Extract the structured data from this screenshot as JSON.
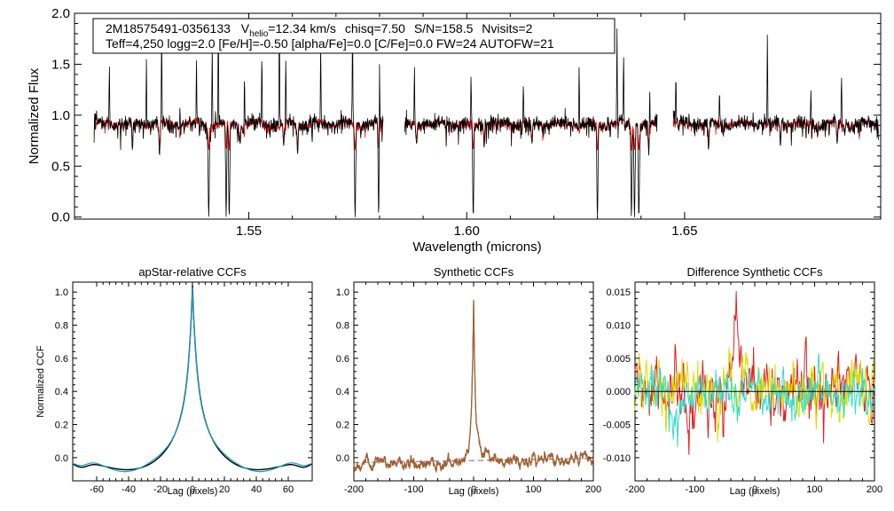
{
  "chart_data": [
    {
      "type": "line",
      "id": "spectrum",
      "title": "",
      "info_line1": {
        "star": "2M18575491-0356133",
        "vhelio_label": "V",
        "vhelio_sub": "helio",
        "vhelio_value": "=12.34 km/s",
        "chisq": "chisq=7.50",
        "snr": "S/N=158.5",
        "nvisits": "Nvisits=2"
      },
      "info_line2": "Teff=4,250 logg=2.0 [Fe/H]=-0.50 [alpha/Fe]=0.0 [C/Fe]=0.0 FW=24 AUTOFW=21",
      "xlabel": "Wavelength (microns)",
      "ylabel": "Normalized Flux",
      "xlim": [
        1.51,
        1.695
      ],
      "ylim": [
        -0.02,
        2.0
      ],
      "xticks": [
        "1.55",
        "1.60",
        "1.65"
      ],
      "xtick_values": [
        1.55,
        1.6,
        1.65
      ],
      "yticks": [
        "0.0",
        "0.5",
        "1.0",
        "1.5",
        "2.0"
      ],
      "ytick_values": [
        0.0,
        0.5,
        1.0,
        1.5,
        2.0
      ],
      "chip_ranges": [
        [
          1.5145,
          1.5808
        ],
        [
          1.5857,
          1.6437
        ],
        [
          1.6474,
          1.6945
        ]
      ],
      "continuum": 0.95,
      "absorption_lines": [
        [
          1.5233,
          0.66
        ],
        [
          1.5295,
          0.6
        ],
        [
          1.5342,
          0.75
        ],
        [
          1.5408,
          0.0
        ],
        [
          1.5448,
          0.0
        ],
        [
          1.5455,
          0.0
        ],
        [
          1.548,
          0.72
        ],
        [
          1.558,
          0.7
        ],
        [
          1.5612,
          0.62
        ],
        [
          1.5744,
          0.0
        ],
        [
          1.5798,
          0.0
        ],
        [
          1.5885,
          0.72
        ],
        [
          1.6015,
          0.0
        ],
        [
          1.604,
          0.68
        ],
        [
          1.615,
          0.72
        ],
        [
          1.63,
          0.0
        ],
        [
          1.6378,
          0.0
        ],
        [
          1.6385,
          0.0
        ],
        [
          1.6395,
          0.0
        ],
        [
          1.6418,
          0.6
        ],
        [
          1.6555,
          0.66
        ],
        [
          1.672,
          0.7
        ],
        [
          1.685,
          0.72
        ]
      ],
      "emission_spikes": [
        [
          1.518,
          1.5
        ],
        [
          1.5265,
          1.55
        ],
        [
          1.53,
          1.95
        ],
        [
          1.5342,
          1.1
        ],
        [
          1.538,
          1.55
        ],
        [
          1.5416,
          1.7
        ],
        [
          1.543,
          2.0
        ],
        [
          1.549,
          1.4
        ],
        [
          1.553,
          1.6
        ],
        [
          1.557,
          2.0
        ],
        [
          1.5585,
          1.55
        ],
        [
          1.5665,
          1.7
        ],
        [
          1.5738,
          1.9
        ],
        [
          1.58,
          1.5
        ],
        [
          1.588,
          1.5
        ],
        [
          1.601,
          1.4
        ],
        [
          1.613,
          1.3
        ],
        [
          1.6258,
          1.5
        ],
        [
          1.6345,
          1.85
        ],
        [
          1.636,
          1.6
        ],
        [
          1.642,
          1.25
        ],
        [
          1.648,
          1.4
        ],
        [
          1.658,
          1.25
        ],
        [
          1.669,
          1.8
        ],
        [
          1.679,
          1.25
        ],
        [
          1.686,
          1.4
        ]
      ],
      "series": [
        {
          "name": "Observed",
          "color": "#000000"
        },
        {
          "name": "Model",
          "color": "#ff0000"
        }
      ]
    },
    {
      "type": "line",
      "id": "ccf-apstar",
      "title": "apStar-relative CCFs",
      "xlabel": "Lag (pixels)",
      "ylabel": "Normalized CCF",
      "xlim": [
        -75,
        75
      ],
      "ylim": [
        -0.14,
        1.06
      ],
      "xticks": [
        "-60",
        "-40",
        "-20",
        "0",
        "20",
        "40",
        "60"
      ],
      "xtick_values": [
        -60,
        -40,
        -20,
        0,
        20,
        40,
        60
      ],
      "yticks": [
        "0.0",
        "0.2",
        "0.4",
        "0.6",
        "0.8",
        "1.0"
      ],
      "ytick_values": [
        0.0,
        0.2,
        0.4,
        0.6,
        0.8,
        1.0
      ],
      "peak_lag": 0,
      "peak_value": 1.0,
      "series": [
        {
          "name": "ccf",
          "color": "#000000"
        },
        {
          "name": "ccf-fit",
          "color": "#1f9fc4"
        }
      ]
    },
    {
      "type": "line",
      "id": "ccf-synthetic",
      "title": "Synthetic CCFs",
      "xlabel": "Lag (pixels)",
      "ylabel": "",
      "xlim": [
        -200,
        200
      ],
      "ylim": [
        -0.14,
        1.06
      ],
      "xticks": [
        "-200",
        "-100",
        "0",
        "100",
        "200"
      ],
      "xtick_values": [
        -200,
        -100,
        0,
        100,
        200
      ],
      "yticks": [
        "0.0",
        "0.2",
        "0.4",
        "0.6",
        "0.8",
        "1.0"
      ],
      "ytick_values": [
        0.0,
        0.2,
        0.4,
        0.6,
        0.8,
        1.0
      ],
      "peak_lag": 0,
      "peak_value": 1.0,
      "series": [
        {
          "name": "ccf-a",
          "color": "#cc3333"
        },
        {
          "name": "ccf-b",
          "color": "#996633"
        },
        {
          "name": "baseline",
          "color": "#666666",
          "dashed": true
        }
      ]
    },
    {
      "type": "line",
      "id": "ccf-difference",
      "title": "Difference Synthetic CCFs",
      "xlabel": "Lag (pixels)",
      "ylabel": "",
      "xlim": [
        -200,
        200
      ],
      "ylim": [
        -0.0135,
        0.0165
      ],
      "xticks": [
        "-200",
        "-100",
        "0",
        "100",
        "200"
      ],
      "xtick_values": [
        -200,
        -100,
        0,
        100,
        200
      ],
      "yticks": [
        "-0.010",
        "-0.005",
        "0.000",
        "0.005",
        "0.010",
        "0.015"
      ],
      "ytick_values": [
        -0.01,
        -0.005,
        0.0,
        0.005,
        0.01,
        0.015
      ],
      "series": [
        {
          "name": "diff-red",
          "color": "#dd2222"
        },
        {
          "name": "diff-yellow",
          "color": "#dddd00"
        },
        {
          "name": "diff-cyan",
          "color": "#33ddcc"
        },
        {
          "name": "zero",
          "color": "#000000"
        }
      ]
    }
  ]
}
